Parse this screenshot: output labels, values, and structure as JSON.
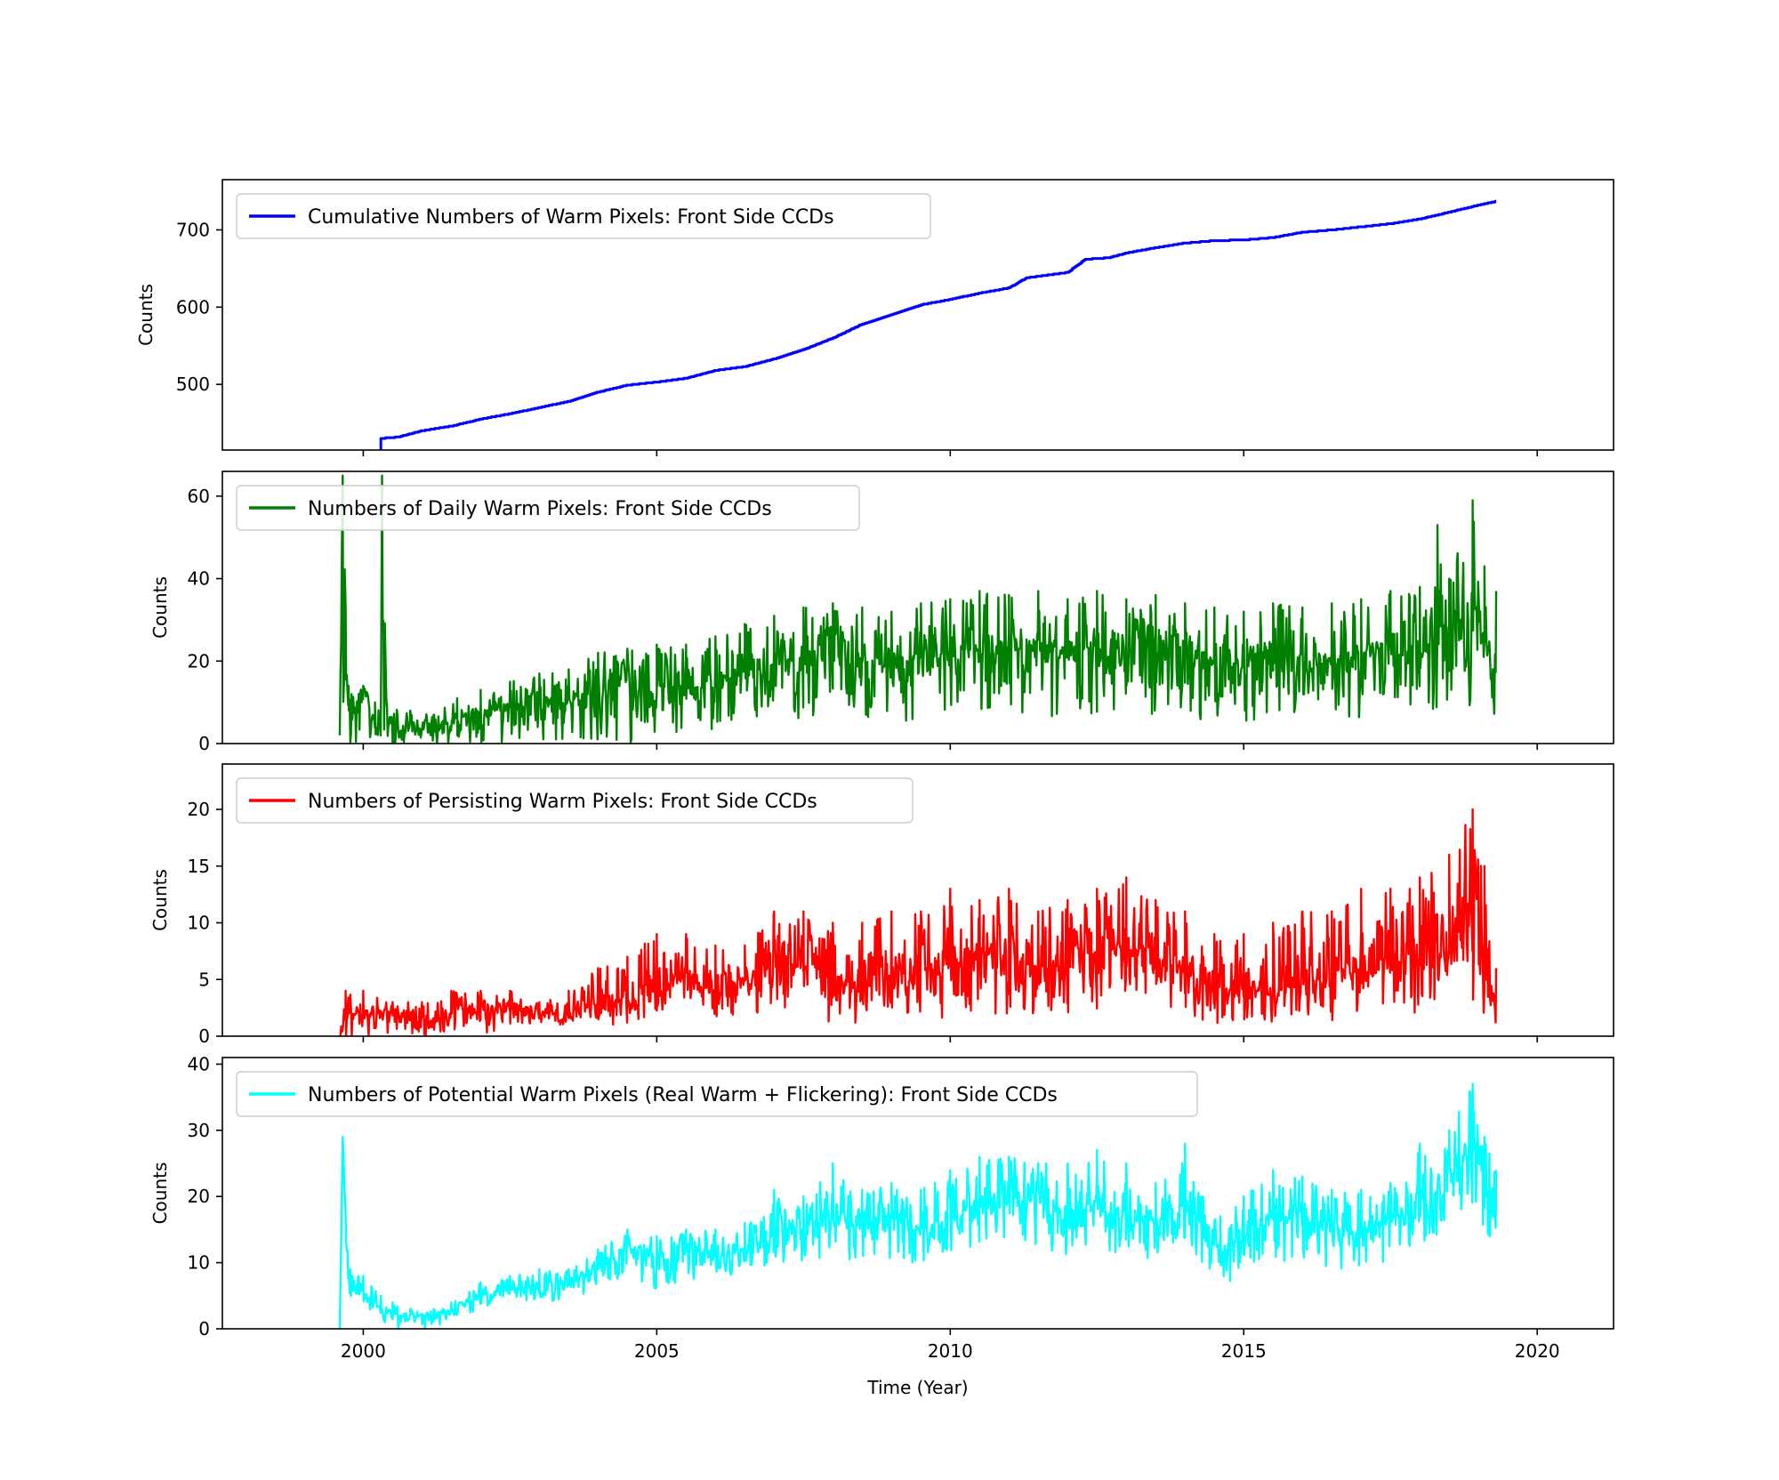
{
  "chart_data": [
    {
      "type": "line",
      "series": [
        {
          "name": "Cumulative Numbers of Warm Pixels: Front Side CCDs",
          "color": "#0000ff",
          "x": [
            2000.3,
            2000.6,
            2001.0,
            2001.5,
            2002.0,
            2002.5,
            2003.0,
            2003.5,
            2004.0,
            2004.5,
            2005.0,
            2005.5,
            2006.0,
            2006.5,
            2007.0,
            2007.5,
            2008.0,
            2008.5,
            2009.0,
            2009.5,
            2010.0,
            2010.5,
            2011.0,
            2011.3,
            2011.6,
            2012.0,
            2012.3,
            2012.7,
            2013.0,
            2013.5,
            2014.0,
            2014.5,
            2015.0,
            2015.5,
            2016.0,
            2016.5,
            2017.0,
            2017.5,
            2018.0,
            2018.5,
            2019.0,
            2019.3
          ],
          "y": [
            430,
            432,
            440,
            446,
            455,
            462,
            470,
            478,
            490,
            499,
            503,
            508,
            518,
            523,
            533,
            545,
            560,
            578,
            590,
            603,
            610,
            618,
            625,
            638,
            641,
            645,
            662,
            664,
            670,
            677,
            683,
            686,
            687,
            690,
            697,
            700,
            704,
            708,
            714,
            723,
            732,
            737
          ]
        }
      ],
      "ylabel": "Counts",
      "xlim": [
        1997.6,
        2021.3
      ],
      "ylim": [
        415,
        765
      ],
      "yticks": [
        500,
        600,
        700
      ],
      "xticks": [
        2000,
        2005,
        2010,
        2015,
        2020
      ],
      "legend_position": "upper-left"
    },
    {
      "type": "line",
      "series": [
        {
          "name": "Numbers of Daily Warm Pixels: Front Side CCDs",
          "color": "#008000",
          "x": [
            1999.6,
            1999.65,
            1999.7,
            1999.75,
            1999.8,
            2000.0,
            2000.2,
            2000.3,
            2000.32,
            2000.4,
            2000.8,
            2001.2,
            2001.6,
            2002.0,
            2002.5,
            2003.0,
            2003.5,
            2004.0,
            2004.5,
            2005.0,
            2005.5,
            2006.0,
            2006.5,
            2007.0,
            2007.5,
            2008.0,
            2008.5,
            2009.0,
            2009.5,
            2010.0,
            2010.5,
            2011.0,
            2011.5,
            2012.0,
            2012.5,
            2013.0,
            2013.5,
            2014.0,
            2014.5,
            2015.0,
            2015.5,
            2016.0,
            2016.5,
            2017.0,
            2017.5,
            2018.0,
            2018.3,
            2018.5,
            2018.9,
            2019.1,
            2019.3
          ],
          "y": [
            2,
            65,
            30,
            12,
            6,
            14,
            4,
            2,
            65,
            5,
            4,
            3,
            6,
            8,
            9,
            11,
            10,
            14,
            15,
            14,
            13,
            15,
            17,
            19,
            20,
            21,
            20,
            19,
            21,
            22,
            23,
            22,
            23,
            22,
            23,
            22,
            22,
            21,
            20,
            19,
            21,
            20,
            21,
            22,
            23,
            24,
            29,
            26,
            30,
            26,
            15
          ],
          "lower": [
            0,
            0,
            0,
            0,
            0,
            0,
            0,
            0,
            0,
            0,
            0,
            0,
            0,
            0,
            0,
            0,
            0,
            0,
            0,
            2,
            2,
            3,
            4,
            5,
            6,
            6,
            5,
            5,
            6,
            6,
            7,
            6,
            7,
            6,
            7,
            6,
            6,
            5,
            4,
            4,
            5,
            5,
            5,
            5,
            6,
            6,
            7,
            7,
            8,
            7,
            5
          ],
          "upper": [
            2,
            65,
            33,
            14,
            12,
            14,
            10,
            8,
            65,
            9,
            8,
            7,
            11,
            13,
            15,
            17,
            18,
            22,
            23,
            24,
            24,
            26,
            29,
            31,
            33,
            34,
            33,
            32,
            34,
            35,
            37,
            36,
            37,
            35,
            37,
            35,
            36,
            34,
            33,
            32,
            34,
            33,
            34,
            35,
            37,
            38,
            53,
            40,
            59,
            43,
            37
          ]
        }
      ],
      "ylabel": "Counts",
      "xlim": [
        1997.6,
        2021.3
      ],
      "ylim": [
        0,
        66
      ],
      "yticks": [
        0,
        20,
        40,
        60
      ],
      "xticks": [
        2000,
        2005,
        2010,
        2015,
        2020
      ],
      "legend_position": "upper-left"
    },
    {
      "type": "line",
      "series": [
        {
          "name": "Numbers of Persisting Warm Pixels: Front Side CCDs",
          "color": "#ff0000",
          "x": [
            1999.6,
            1999.7,
            2000.0,
            2000.5,
            2001.0,
            2001.5,
            2002.0,
            2002.5,
            2003.0,
            2003.5,
            2004.0,
            2004.5,
            2005.0,
            2005.5,
            2006.0,
            2006.5,
            2007.0,
            2007.5,
            2008.0,
            2008.5,
            2009.0,
            2009.5,
            2010.0,
            2010.5,
            2011.0,
            2011.5,
            2012.0,
            2012.5,
            2013.0,
            2013.5,
            2014.0,
            2014.5,
            2015.0,
            2015.5,
            2016.0,
            2016.5,
            2017.0,
            2017.5,
            2018.0,
            2018.5,
            2018.9,
            2019.1,
            2019.3
          ],
          "y": [
            0,
            2,
            2,
            2,
            1,
            2,
            2,
            3,
            2,
            2,
            3,
            3,
            4,
            5,
            4,
            5,
            6,
            6,
            5,
            5,
            6,
            6,
            6,
            7,
            7,
            6,
            6,
            7,
            8,
            7,
            6,
            4,
            4,
            4,
            5,
            5,
            6,
            6,
            7,
            8,
            10,
            6,
            2
          ],
          "lower": [
            0,
            0,
            0,
            0,
            0,
            0,
            0,
            1,
            1,
            1,
            1,
            1,
            2,
            2,
            1,
            2,
            2,
            2,
            1,
            1,
            2,
            2,
            1,
            2,
            2,
            2,
            2,
            2,
            3,
            2,
            2,
            1,
            1,
            1,
            1,
            1,
            2,
            2,
            2,
            2,
            3,
            2,
            1
          ],
          "upper": [
            0,
            4,
            4,
            3,
            3,
            4,
            4,
            4,
            3,
            4,
            6,
            7,
            9,
            9,
            8,
            8,
            11,
            11,
            10,
            10,
            11,
            11,
            13,
            12,
            13,
            11,
            12,
            13,
            14,
            12,
            11,
            9,
            9,
            10,
            11,
            11,
            13,
            13,
            14,
            16,
            20,
            15,
            6
          ]
        }
      ],
      "ylabel": "Counts",
      "xlim": [
        1997.6,
        2021.3
      ],
      "ylim": [
        0,
        24
      ],
      "yticks": [
        0,
        5,
        10,
        15,
        20
      ],
      "xticks": [
        2000,
        2005,
        2010,
        2015,
        2020
      ],
      "legend_position": "upper-left"
    },
    {
      "type": "line",
      "series": [
        {
          "name": "Numbers of Potential Warm Pixels (Real Warm + Flickering): Front Side CCDs",
          "color": "#00ffff",
          "x": [
            1999.6,
            1999.65,
            1999.7,
            1999.8,
            2000.0,
            2000.3,
            2000.5,
            2000.8,
            2001.2,
            2001.5,
            2002.0,
            2002.5,
            2003.0,
            2003.5,
            2004.0,
            2004.5,
            2005.0,
            2005.5,
            2006.0,
            2006.5,
            2007.0,
            2007.5,
            2008.0,
            2008.5,
            2009.0,
            2009.5,
            2010.0,
            2010.5,
            2011.0,
            2011.5,
            2012.0,
            2012.5,
            2013.0,
            2013.5,
            2014.0,
            2014.3,
            2014.6,
            2015.0,
            2015.5,
            2016.0,
            2016.5,
            2017.0,
            2017.5,
            2018.0,
            2018.5,
            2018.9,
            2019.1,
            2019.3
          ],
          "y": [
            0,
            29,
            15,
            5,
            6,
            3,
            2,
            2,
            2,
            3,
            5,
            6,
            6,
            7,
            9,
            12,
            10,
            11,
            11,
            12,
            15,
            15,
            18,
            15,
            16,
            15,
            17,
            19,
            20,
            19,
            18,
            19,
            18,
            16,
            19,
            14,
            12,
            14,
            17,
            16,
            15,
            15,
            16,
            20,
            22,
            28,
            22,
            16
          ],
          "lower": [
            0,
            25,
            10,
            3,
            4,
            1,
            0,
            0,
            0,
            1,
            3,
            4,
            4,
            4,
            6,
            8,
            6,
            7,
            7,
            8,
            10,
            10,
            11,
            10,
            10,
            10,
            11,
            12,
            13,
            12,
            11,
            12,
            11,
            10,
            12,
            8,
            6,
            8,
            10,
            10,
            9,
            9,
            10,
            13,
            14,
            18,
            14,
            12
          ],
          "upper": [
            0,
            29,
            17,
            8,
            8,
            5,
            4,
            3,
            3,
            4,
            7,
            8,
            9,
            9,
            12,
            15,
            14,
            15,
            15,
            16,
            21,
            20,
            25,
            21,
            22,
            21,
            24,
            26,
            26,
            25,
            25,
            27,
            25,
            22,
            28,
            20,
            17,
            20,
            24,
            23,
            21,
            21,
            22,
            28,
            30,
            37,
            29,
            24
          ]
        }
      ],
      "ylabel": "Counts",
      "xlabel": "Time (Year)",
      "xlim": [
        1997.6,
        2021.3
      ],
      "ylim": [
        0,
        41
      ],
      "yticks": [
        0,
        10,
        20,
        30,
        40
      ],
      "xticks": [
        2000,
        2005,
        2010,
        2015,
        2020
      ],
      "legend_position": "upper-left"
    }
  ]
}
